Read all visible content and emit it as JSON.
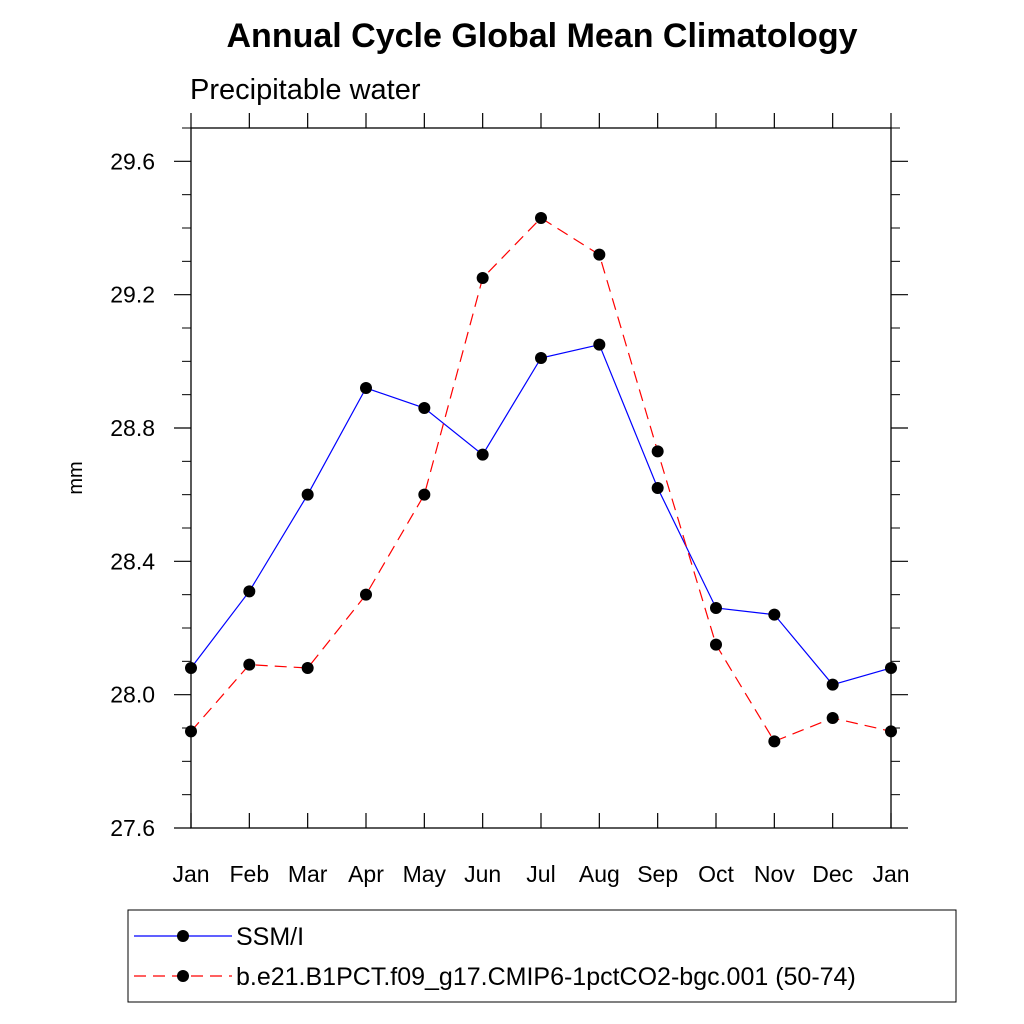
{
  "chart_data": {
    "type": "line",
    "title": "Annual Cycle Global Mean Climatology",
    "subtitle": "Precipitable water",
    "xlabel": "",
    "ylabel": "mm",
    "categories": [
      "Jan",
      "Feb",
      "Mar",
      "Apr",
      "May",
      "Jun",
      "Jul",
      "Aug",
      "Sep",
      "Oct",
      "Nov",
      "Dec",
      "Jan"
    ],
    "ylim": [
      27.6,
      29.7
    ],
    "yticks": [
      "27.6",
      "28.0",
      "28.4",
      "28.8",
      "29.2",
      "29.6"
    ],
    "legend_position": "bottom",
    "series": [
      {
        "name": "SSM/I",
        "color": "#0000ff",
        "dash": "solid",
        "values": [
          28.08,
          28.31,
          28.6,
          28.92,
          28.86,
          28.72,
          29.01,
          29.05,
          28.62,
          28.26,
          28.24,
          28.03,
          28.08
        ]
      },
      {
        "name": "b.e21.B1PCT.f09_g17.CMIP6-1pctCO2-bgc.001 (50-74)",
        "color": "#ff0000",
        "dash": "dashed",
        "values": [
          27.89,
          28.09,
          28.08,
          28.3,
          28.6,
          29.25,
          29.43,
          29.32,
          28.73,
          28.15,
          27.86,
          27.93,
          27.89
        ]
      }
    ]
  }
}
